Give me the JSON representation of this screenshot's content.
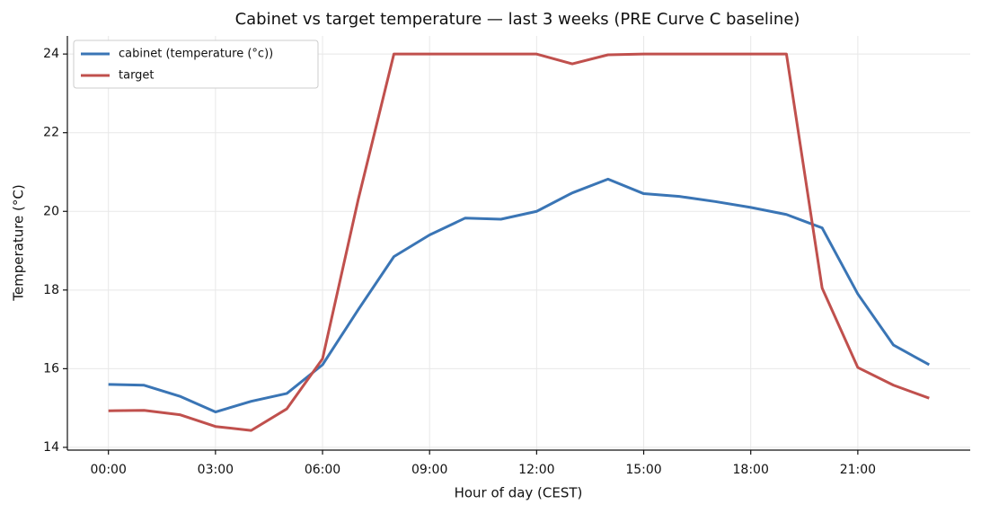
{
  "chart_data": {
    "type": "line",
    "title": "Cabinet vs target temperature — last 3 weeks (PRE Curve C baseline)",
    "xlabel": "Hour of day (CEST)",
    "ylabel": "Temperature (°C)",
    "x": [
      0,
      1,
      2,
      3,
      4,
      5,
      6,
      7,
      8,
      9,
      10,
      11,
      12,
      13,
      14,
      15,
      16,
      17,
      18,
      19,
      20,
      21,
      22,
      23
    ],
    "series": [
      {
        "name": "cabinet (temperature (°c))",
        "color": "#3a75b5",
        "values": [
          15.6,
          15.58,
          15.3,
          14.9,
          15.17,
          15.37,
          16.1,
          17.5,
          18.85,
          19.4,
          19.83,
          19.8,
          20.0,
          20.47,
          20.82,
          20.45,
          20.38,
          20.25,
          20.1,
          19.92,
          19.58,
          17.9,
          16.6,
          16.1
        ]
      },
      {
        "name": "target",
        "color": "#c0504d",
        "values": [
          14.93,
          14.94,
          14.83,
          14.53,
          14.43,
          14.98,
          16.25,
          20.3,
          24.0,
          24.0,
          24.0,
          24.0,
          24.0,
          23.75,
          23.98,
          24.0,
          24.0,
          24.0,
          24.0,
          24.0,
          18.05,
          16.03,
          15.58,
          15.25
        ]
      }
    ],
    "xlim": [
      -1.15,
      24.15
    ],
    "xticks": [
      {
        "value": 0,
        "label": "00:00"
      },
      {
        "value": 3,
        "label": "03:00"
      },
      {
        "value": 6,
        "label": "06:00"
      },
      {
        "value": 9,
        "label": "09:00"
      },
      {
        "value": 12,
        "label": "12:00"
      },
      {
        "value": 15,
        "label": "15:00"
      },
      {
        "value": 18,
        "label": "18:00"
      },
      {
        "value": 21,
        "label": "21:00"
      }
    ],
    "ylim": [
      13.93,
      24.46
    ],
    "yticks": [
      14,
      16,
      18,
      20,
      22,
      24
    ],
    "grid": true,
    "legend": "upper left"
  }
}
